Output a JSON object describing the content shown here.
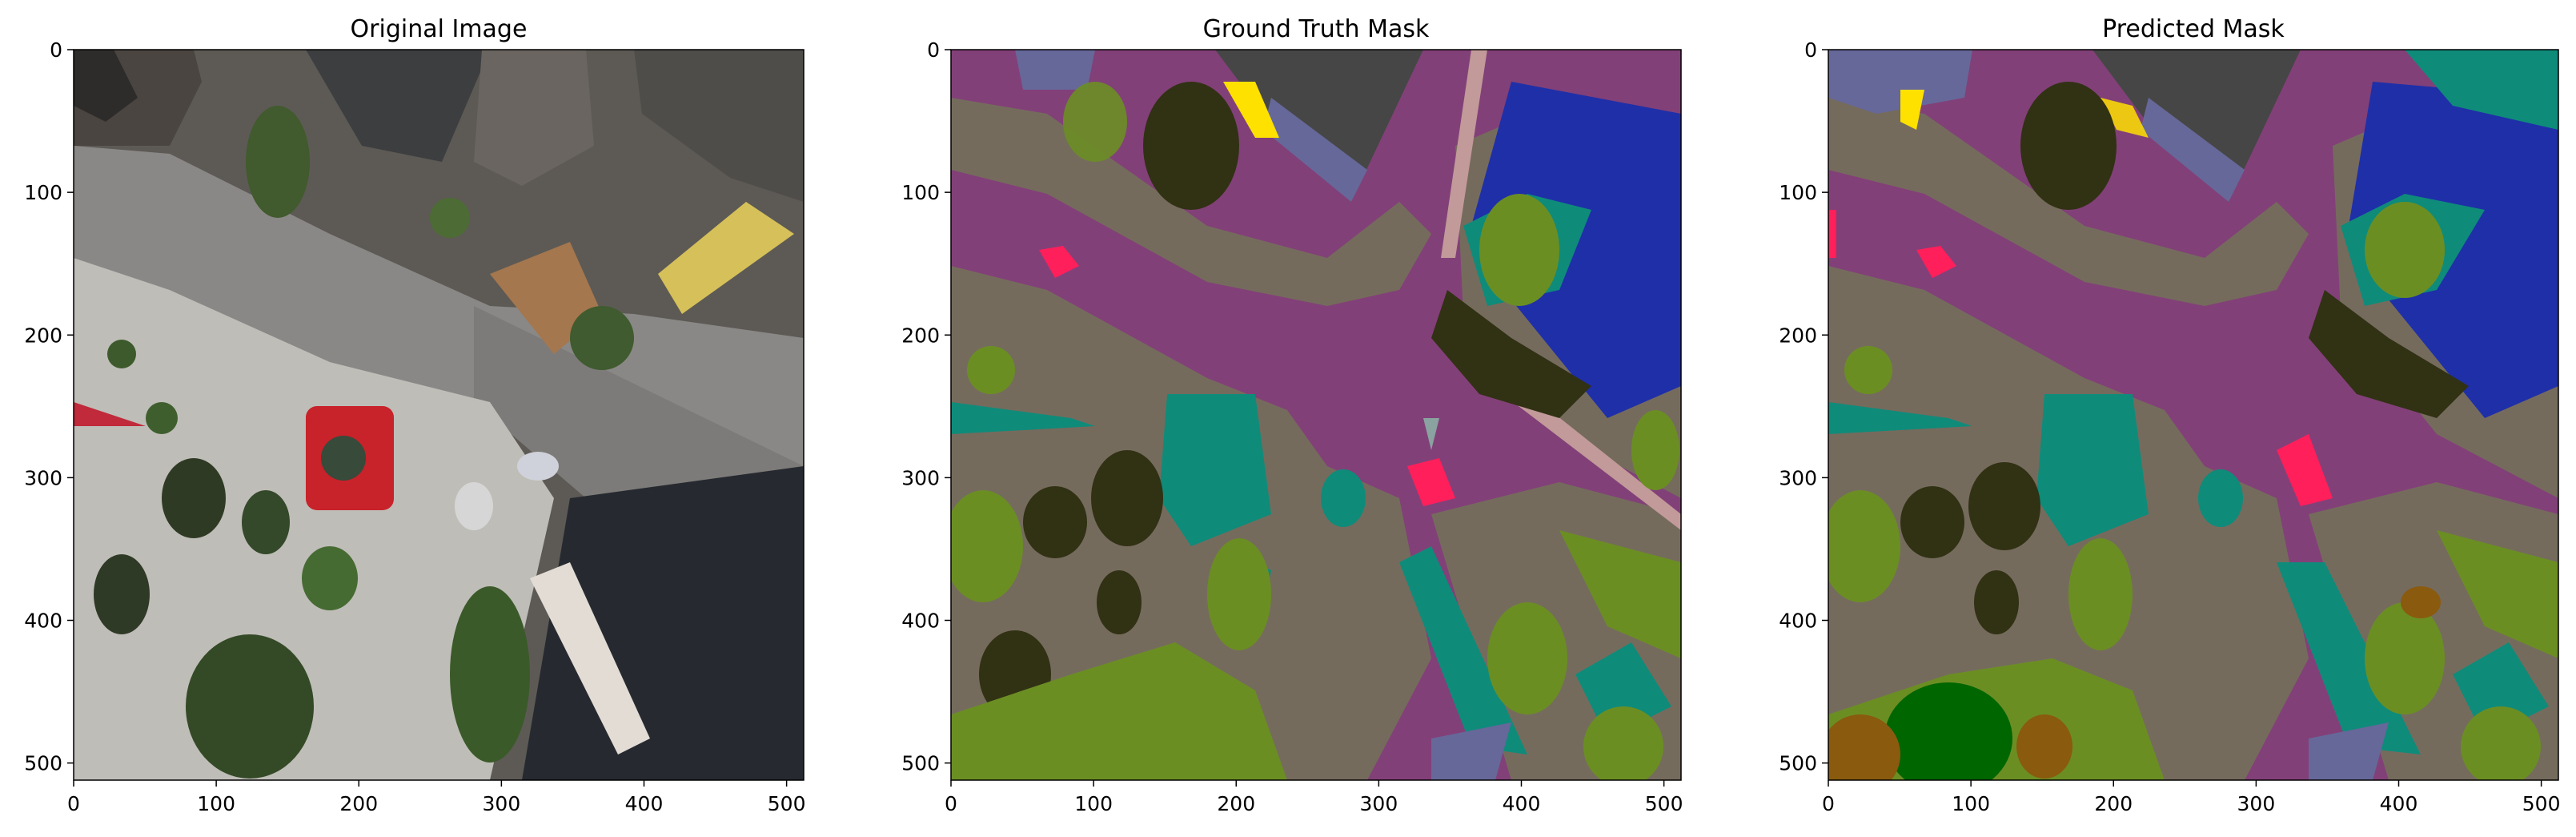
{
  "figure": {
    "panels": [
      {
        "id": "original",
        "title": "Original Image",
        "x_ticks": [
          "0",
          "100",
          "200",
          "300",
          "400",
          "500"
        ],
        "y_ticks": [
          "0",
          "100",
          "200",
          "300",
          "400",
          "500"
        ]
      },
      {
        "id": "ground_truth",
        "title": "Ground Truth Mask",
        "x_ticks": [
          "0",
          "100",
          "200",
          "300",
          "400",
          "500"
        ],
        "y_ticks": [
          "0",
          "100",
          "200",
          "300",
          "400",
          "500"
        ]
      },
      {
        "id": "predicted",
        "title": "Predicted Mask",
        "x_ticks": [
          "0",
          "100",
          "200",
          "300",
          "400",
          "500"
        ],
        "y_ticks": [
          "0",
          "100",
          "200",
          "300",
          "400",
          "500"
        ]
      }
    ],
    "tick_values": [
      0,
      100,
      200,
      300,
      400,
      500
    ],
    "image_size": 512
  },
  "segmentation_colors": {
    "road": "#824078",
    "ground": "#756b5d",
    "vegetation": "#6b8e23",
    "roof": "#464646",
    "water_pool": "#0f8b7a",
    "car": "#1f2fa8",
    "person": "#ff1f5b",
    "dark_tree": "#313114",
    "fence": "#666899",
    "yellow_object": "#ffe100",
    "pole": "#c19a99",
    "dark_green": "#006600",
    "brown": "#8a5a0e"
  }
}
